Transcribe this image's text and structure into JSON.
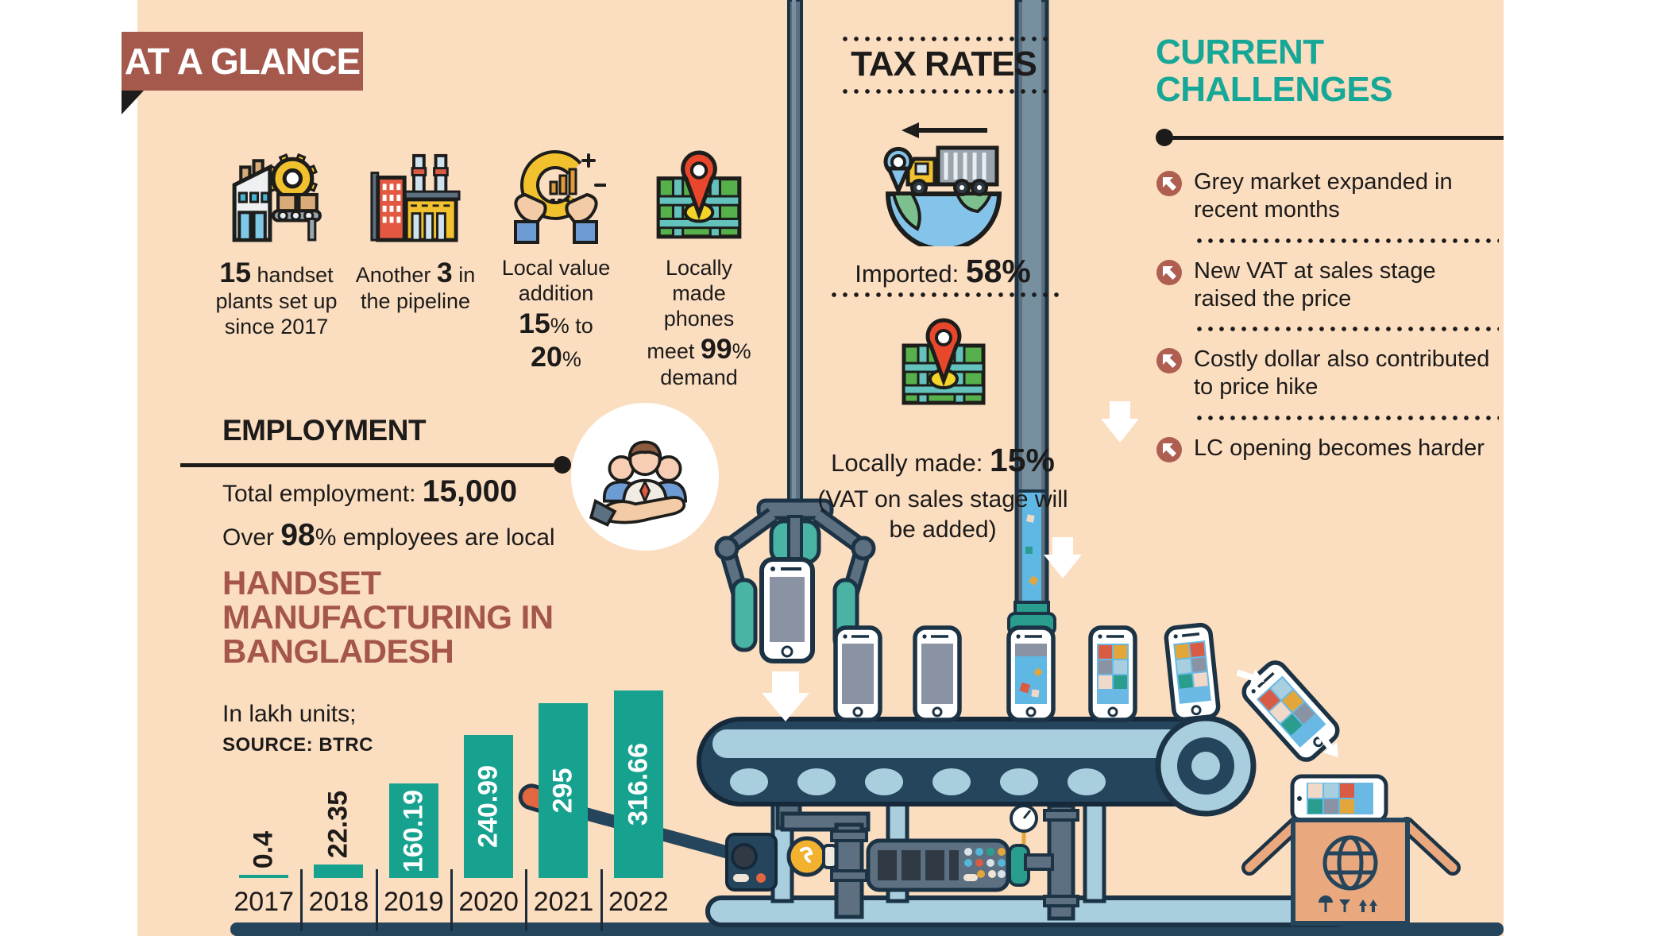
{
  "colors": {
    "background": "#FBDDC0",
    "banner": "#A4594C",
    "teal_accent": "#17A797",
    "bar_teal": "#16A28F",
    "title_brown": "#A5564B",
    "navy_outline": "#24455C",
    "light_blue": "#A9CFDF",
    "liquid_blue": "#5FB8E4",
    "bullet_brown": "#AE5F51"
  },
  "banner": {
    "title": "AT A GLANCE"
  },
  "stats": [
    {
      "icon": "handset-plant-factory-icon",
      "segments": [
        {
          "t": "15",
          "b": 1
        },
        {
          "t": " handset plants set up since 2017"
        }
      ]
    },
    {
      "icon": "pipeline-factory-icon",
      "segments": [
        {
          "t": "Another "
        },
        {
          "t": "3",
          "b": 1
        },
        {
          "t": " in the pipeline"
        }
      ]
    },
    {
      "icon": "value-addition-hands-icon",
      "segments": [
        {
          "t": "Local value addition "
        },
        {
          "t": "15",
          "b": 1
        },
        {
          "t": "% to "
        },
        {
          "t": "20",
          "b": 1
        },
        {
          "t": "%"
        }
      ]
    },
    {
      "icon": "local-map-pin-icon",
      "segments": [
        {
          "t": "Locally made phones meet "
        },
        {
          "t": "99",
          "b": 1
        },
        {
          "t": "% demand"
        }
      ]
    }
  ],
  "employment": {
    "heading": "EMPLOYMENT",
    "total": [
      {
        "t": "Total employment: "
      },
      {
        "t": "15,000",
        "b": 1
      }
    ],
    "local": [
      {
        "t": "Over "
      },
      {
        "t": "98",
        "b": 1
      },
      {
        "t": "% employees are local"
      }
    ],
    "icon": "workforce-in-hand-icon"
  },
  "tax": {
    "heading": "TAX RATES",
    "imported_icon": "import-truck-globe-icon",
    "imported": [
      {
        "t": "Imported: "
      },
      {
        "t": "58",
        "b": 1
      },
      {
        "t": "%",
        "b": 1
      }
    ],
    "locally_icon": "local-map-pin-icon",
    "locally": [
      {
        "t": "Locally made: "
      },
      {
        "t": "15",
        "b": 1
      },
      {
        "t": "%",
        "b": 1
      }
    ],
    "note": "(VAT on sales stage will be added)"
  },
  "challenges": {
    "heading": "CURRENT CHALLENGES",
    "bullet_icon": "arrow-up-left-bullet-icon",
    "items": [
      "Grey market expanded in recent months",
      "New VAT at sales stage raised the price",
      "Costly dollar also contributed to price hike",
      "LC opening becomes harder"
    ]
  },
  "chart": {
    "title": "HANDSET MANUFACTURING IN BANGLADESH",
    "subtitle": "In lakh units;",
    "source": "SOURCE: BTRC"
  },
  "chart_data": {
    "type": "bar",
    "title": "HANDSET MANUFACTURING IN BANGLADESH",
    "subtitle": "In lakh units;",
    "source": "SOURCE: BTRC",
    "categories": [
      "2017",
      "2018",
      "2019",
      "2020",
      "2021",
      "2022"
    ],
    "values": [
      0.4,
      22.35,
      160.19,
      240.99,
      295,
      316.66
    ],
    "value_labels": [
      "0.4",
      "22.35",
      "160.19",
      "240.99",
      "295",
      "316.66"
    ],
    "bar_color": "#16A28F",
    "label_inside_color": "#ffffff",
    "label_outside_color": "#1c1b1a",
    "ylim": [
      0,
      330
    ],
    "grid": false,
    "legend": "none",
    "value_label_rotation": 90
  },
  "illustration": {
    "icons": [
      "robot-claw-icon",
      "assembly-phone-icon",
      "conveyor-belt-icon",
      "filler-pipe-icon",
      "machine-control-panel-icon",
      "lever-icon",
      "bulb-icon",
      "gauge-icon",
      "export-box-globe-icon",
      "package-symbols-icon",
      "down-arrow-icon"
    ]
  }
}
